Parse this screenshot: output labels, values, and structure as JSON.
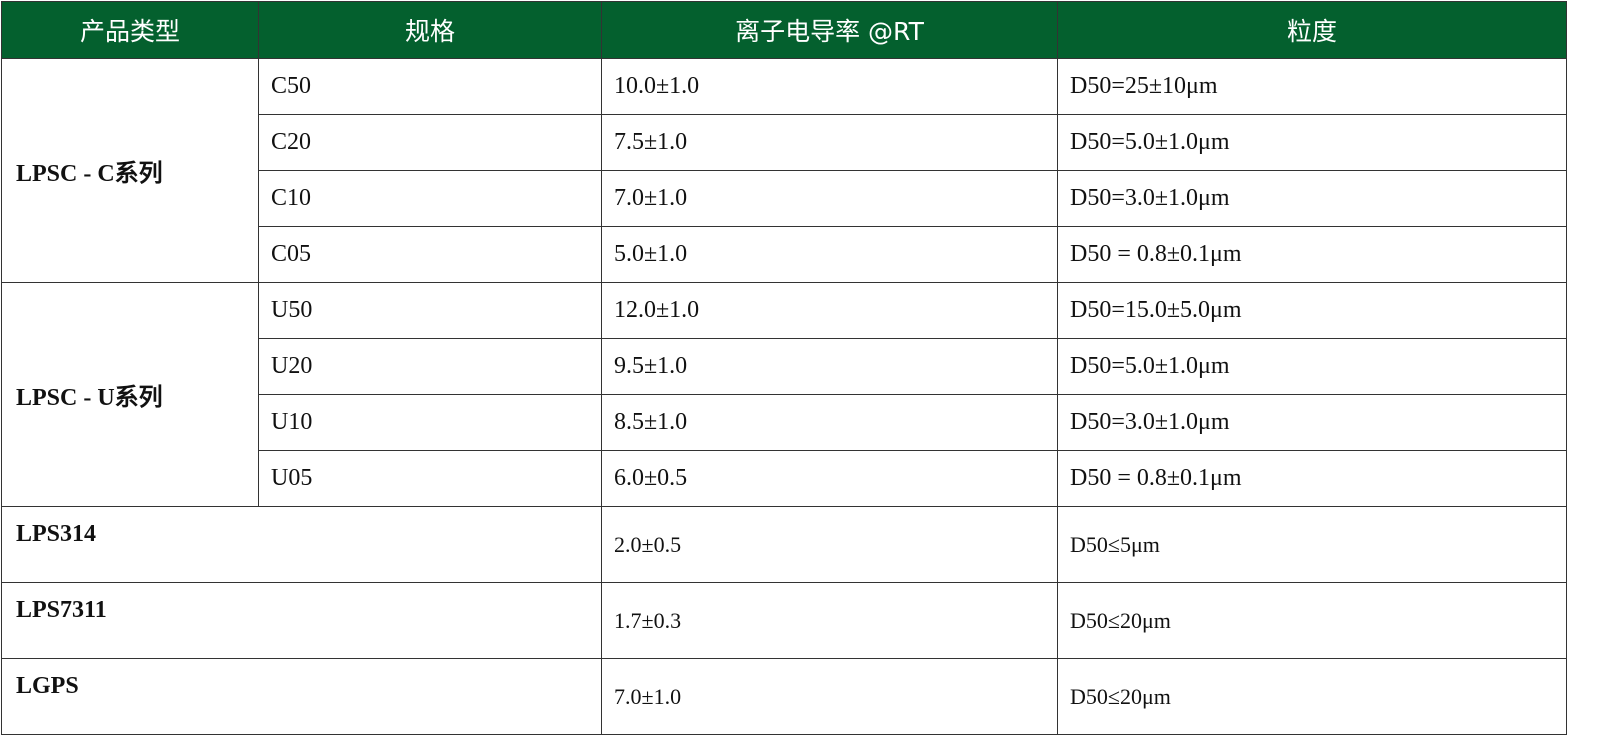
{
  "header_color": "#04602e",
  "headers": [
    "产品类型",
    "规格",
    "离子电导率 @RT",
    "粒度"
  ],
  "groups": [
    {
      "type": "LPSC - C系列",
      "rows": [
        {
          "spec": "C50",
          "cond": "10.0±1.0",
          "size": "D50=25±10μm"
        },
        {
          "spec": "C20",
          "cond": "7.5±1.0",
          "size": "D50=5.0±1.0μm"
        },
        {
          "spec": "C10",
          "cond": "7.0±1.0",
          "size": "D50=3.0±1.0μm"
        },
        {
          "spec": "C05",
          "cond": "5.0±1.0",
          "size": "D50 = 0.8±0.1μm"
        }
      ]
    },
    {
      "type": "LPSC - U系列",
      "rows": [
        {
          "spec": "U50",
          "cond": "12.0±1.0",
          "size": "D50=15.0±5.0μm"
        },
        {
          "spec": "U20",
          "cond": "9.5±1.0",
          "size": "D50=5.0±1.0μm"
        },
        {
          "spec": "U10",
          "cond": "8.5±1.0",
          "size": "D50=3.0±1.0μm"
        },
        {
          "spec": "U05",
          "cond": "6.0±0.5",
          "size": "D50 = 0.8±0.1μm"
        }
      ]
    }
  ],
  "singles": [
    {
      "type": "LPS314",
      "cond": "2.0±0.5",
      "size": "D50≤5μm"
    },
    {
      "type": "LPS7311",
      "cond": "1.7±0.3",
      "size": "D50≤20μm"
    },
    {
      "type": "LGPS",
      "cond": "7.0±1.0",
      "size": "D50≤20μm"
    }
  ]
}
